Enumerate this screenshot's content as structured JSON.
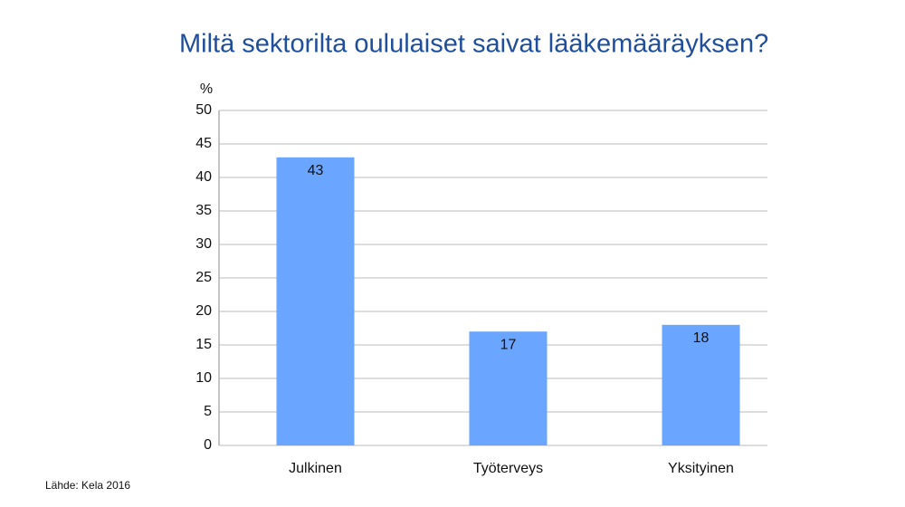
{
  "chart_data": {
    "type": "bar",
    "title": "Miltä sektorilta oululaiset saivat lääkemääräyksen?",
    "y_label": "%",
    "source": "Lähde: Kela 2016",
    "categories": [
      "Julkinen",
      "Työterveys",
      "Yksityinen"
    ],
    "values": [
      43,
      17,
      18
    ],
    "color": "#6aa5ff",
    "ylim": [
      0,
      50
    ],
    "yticks": [
      0,
      5,
      10,
      15,
      20,
      25,
      30,
      35,
      40,
      45,
      50
    ],
    "grid": true
  }
}
